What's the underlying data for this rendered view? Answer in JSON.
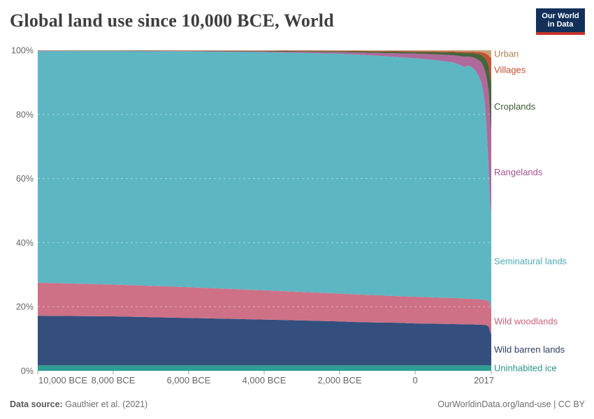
{
  "header": {
    "title": "Global land use since 10,000 BCE, World",
    "logo": {
      "line1": "Our World",
      "line2": "in Data",
      "bg_color": "#12305A",
      "bar_color": "#C4362C"
    }
  },
  "footer": {
    "source_label": "Data source:",
    "source_value": "Gauthier et al. (2021)",
    "credit": "OurWorldinData.org/land-use | CC BY"
  },
  "axis_style": {
    "tick_text_color": "#666666",
    "tick_mark_color": "#999999",
    "grid_color": "rgba(255,255,255,0.45)"
  },
  "chart_data": {
    "type": "area",
    "stacked": true,
    "title": "Global land use since 10,000 BCE, World",
    "unit": "%",
    "xlim": [
      -10000,
      2017
    ],
    "ylim": [
      0,
      100
    ],
    "grid": "dashed horizontal",
    "legend_position": "right, colored labels at final values",
    "x": [
      -10000,
      -8000,
      -6000,
      -4000,
      -3000,
      -2000,
      -1500,
      -1000,
      -500,
      0,
      500,
      1000,
      1200,
      1300,
      1400,
      1500,
      1600,
      1700,
      1750,
      1800,
      1850,
      1900,
      1950,
      1980,
      2000,
      2017
    ],
    "x_ticks": [
      {
        "year": -10000,
        "label": "10,000 BCE",
        "align": "left"
      },
      {
        "year": -8000,
        "label": "8,000 BCE",
        "align": "center"
      },
      {
        "year": -6000,
        "label": "6,000 BCE",
        "align": "center"
      },
      {
        "year": -4000,
        "label": "4,000 BCE",
        "align": "center"
      },
      {
        "year": -2000,
        "label": "2,000 BCE",
        "align": "center"
      },
      {
        "year": 0,
        "label": "0",
        "align": "center"
      },
      {
        "year": 2017,
        "label": "2017",
        "align": "right"
      }
    ],
    "y_ticks": [
      0,
      20,
      40,
      60,
      80,
      100
    ],
    "y_tick_suffix": "%",
    "series": [
      {
        "name": "Uninhabited ice",
        "color": "#2F9D93",
        "label_color": "#2A948A",
        "values": [
          1.7,
          1.7,
          1.7,
          1.7,
          1.7,
          1.7,
          1.7,
          1.7,
          1.7,
          1.7,
          1.7,
          1.7,
          1.7,
          1.7,
          1.7,
          1.7,
          1.7,
          1.7,
          1.7,
          1.7,
          1.7,
          1.7,
          1.7,
          1.7,
          1.7,
          1.8
        ]
      },
      {
        "name": "Wild barren lands",
        "color": "#344F7D",
        "label_color": "#2B3E68",
        "values": [
          15.5,
          15.3,
          14.8,
          14.3,
          14.0,
          13.7,
          13.5,
          13.4,
          13.3,
          13.1,
          13.0,
          12.9,
          12.85,
          12.8,
          12.8,
          12.8,
          12.75,
          12.7,
          12.7,
          12.65,
          12.6,
          12.5,
          12.1,
          10.9,
          10.1,
          9.7
        ]
      },
      {
        "name": "Wild woodlands",
        "color": "#CE7186",
        "label_color": "#C9607B",
        "values": [
          10.3,
          9.9,
          9.6,
          9.1,
          8.9,
          8.7,
          8.6,
          8.5,
          8.3,
          8.3,
          8.2,
          8.1,
          8.05,
          8.05,
          8.0,
          7.95,
          7.95,
          7.9,
          7.85,
          7.85,
          7.8,
          7.8,
          8.0,
          8.4,
          8.1,
          7.9
        ]
      },
      {
        "name": "Seminatural lands",
        "color": "#5CB7C3",
        "label_color": "#4FA9B9",
        "values": [
          72.2,
          72.8,
          73.5,
          74.3,
          74.6,
          74.8,
          74.8,
          74.7,
          74.6,
          74.4,
          74.1,
          73.5,
          72.8,
          72.15,
          72.8,
          72.35,
          71.2,
          69.2,
          67.75,
          65.3,
          60.9,
          52.0,
          40.2,
          33.0,
          30.6,
          29.6
        ]
      },
      {
        "name": "Rangelands",
        "color": "#B0699B",
        "label_color": "#A4538E",
        "values": [
          0.1,
          0.11,
          0.13,
          0.22,
          0.32,
          0.52,
          0.7,
          0.9,
          1.15,
          1.45,
          1.75,
          2.25,
          2.75,
          3.25,
          2.75,
          3.1,
          3.9,
          5.3,
          6.3,
          7.7,
          10.5,
          17.0,
          25.0,
          27.0,
          26.5,
          26.0
        ]
      },
      {
        "name": "Croplands",
        "color": "#46643C",
        "label_color": "#3D5A34",
        "values": [
          0.1,
          0.1,
          0.13,
          0.19,
          0.25,
          0.3,
          0.37,
          0.42,
          0.52,
          0.57,
          0.7,
          0.9,
          1.12,
          1.25,
          1.17,
          1.25,
          1.5,
          2.0,
          2.3,
          3.0,
          4.1,
          5.7,
          8.2,
          11.5,
          14.0,
          15.0
        ]
      },
      {
        "name": "Villages",
        "color": "#C55231",
        "label_color": "#BF4E2D",
        "values": [
          0.05,
          0.05,
          0.07,
          0.1,
          0.12,
          0.14,
          0.17,
          0.19,
          0.22,
          0.24,
          0.28,
          0.33,
          0.37,
          0.41,
          0.4,
          0.43,
          0.52,
          0.65,
          0.8,
          1.1,
          1.5,
          2.1,
          3.1,
          5.4,
          6.8,
          7.8
        ]
      },
      {
        "name": "Urban",
        "color": "#C9A279",
        "label_color": "#B08255",
        "values": [
          0.05,
          0.06,
          0.07,
          0.09,
          0.11,
          0.14,
          0.16,
          0.19,
          0.21,
          0.24,
          0.27,
          0.32,
          0.36,
          0.39,
          0.38,
          0.42,
          0.48,
          0.55,
          0.6,
          0.7,
          0.9,
          1.2,
          1.7,
          2.1,
          2.2,
          2.2
        ]
      }
    ]
  }
}
